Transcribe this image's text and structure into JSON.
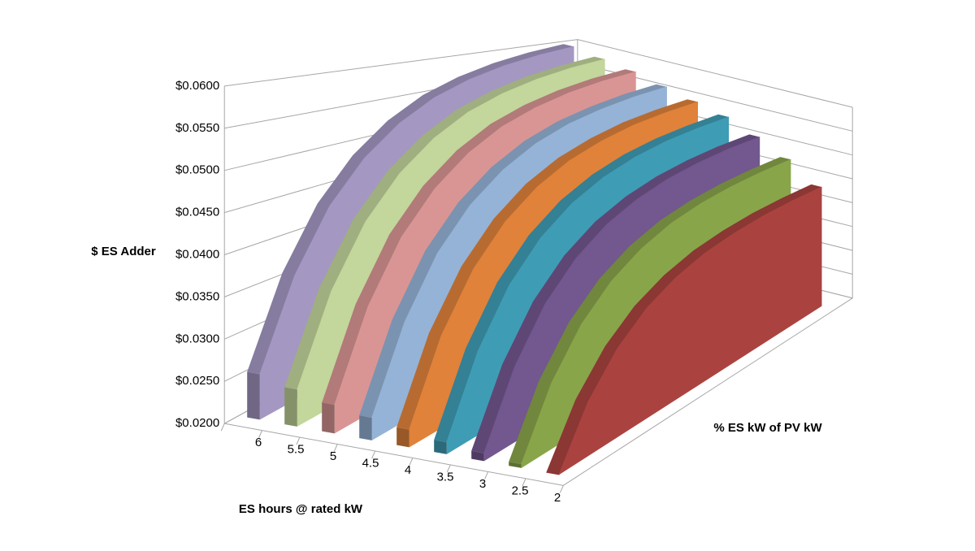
{
  "chart_data": {
    "type": "ribbon",
    "y_label": "$ ES Adder",
    "x_label": "ES hours @ rated kW",
    "z_label": "% ES kW of PV kW",
    "ylim": [
      0.02,
      0.06
    ],
    "yticks": [
      {
        "value": 0.02,
        "label": "$0.0200"
      },
      {
        "value": 0.025,
        "label": "$0.0250"
      },
      {
        "value": 0.03,
        "label": "$0.0300"
      },
      {
        "value": 0.035,
        "label": "$0.0350"
      },
      {
        "value": 0.04,
        "label": "$0.0400"
      },
      {
        "value": 0.045,
        "label": "$0.0450"
      },
      {
        "value": 0.05,
        "label": "$0.0500"
      },
      {
        "value": 0.055,
        "label": "$0.0550"
      },
      {
        "value": 0.06,
        "label": "$0.0600"
      }
    ],
    "grid": true,
    "series": [
      {
        "name": "6",
        "color": "#a497c2",
        "values": [
          0.0255,
          0.0358,
          0.0432,
          0.0484,
          0.0522,
          0.055,
          0.0569,
          0.0583,
          0.0593,
          0.06
        ]
      },
      {
        "name": "5.5",
        "color": "#c3d69b",
        "values": [
          0.0245,
          0.0348,
          0.0422,
          0.0474,
          0.0512,
          0.054,
          0.0559,
          0.0573,
          0.0583,
          0.059
        ]
      },
      {
        "name": "5",
        "color": "#d99594",
        "values": [
          0.0235,
          0.0338,
          0.0412,
          0.0464,
          0.0502,
          0.053,
          0.0549,
          0.0563,
          0.0573,
          0.058
        ]
      },
      {
        "name": "4.5",
        "color": "#95b3d7",
        "values": [
          0.0228,
          0.0328,
          0.0401,
          0.0452,
          0.0489,
          0.0516,
          0.0535,
          0.0548,
          0.0558,
          0.0565
        ]
      },
      {
        "name": "4",
        "color": "#e0823a",
        "values": [
          0.0222,
          0.032,
          0.039,
          0.044,
          0.0476,
          0.0502,
          0.052,
          0.0534,
          0.0543,
          0.055
        ]
      },
      {
        "name": "3.5",
        "color": "#3f9cb5",
        "values": [
          0.0215,
          0.031,
          0.0379,
          0.0428,
          0.0463,
          0.0488,
          0.0506,
          0.0519,
          0.0528,
          0.0535
        ]
      },
      {
        "name": "3",
        "color": "#73578f",
        "values": [
          0.021,
          0.0299,
          0.0364,
          0.041,
          0.0443,
          0.0466,
          0.0483,
          0.0495,
          0.0504,
          0.051
        ]
      },
      {
        "name": "2.5",
        "color": "#88a54a",
        "values": [
          0.0205,
          0.0287,
          0.0346,
          0.0388,
          0.0418,
          0.044,
          0.0455,
          0.0466,
          0.0474,
          0.048
        ]
      },
      {
        "name": "2",
        "color": "#aa4340",
        "values": [
          0.02,
          0.0272,
          0.0323,
          0.036,
          0.0386,
          0.0405,
          0.0418,
          0.0428,
          0.0435,
          0.044
        ]
      }
    ]
  }
}
